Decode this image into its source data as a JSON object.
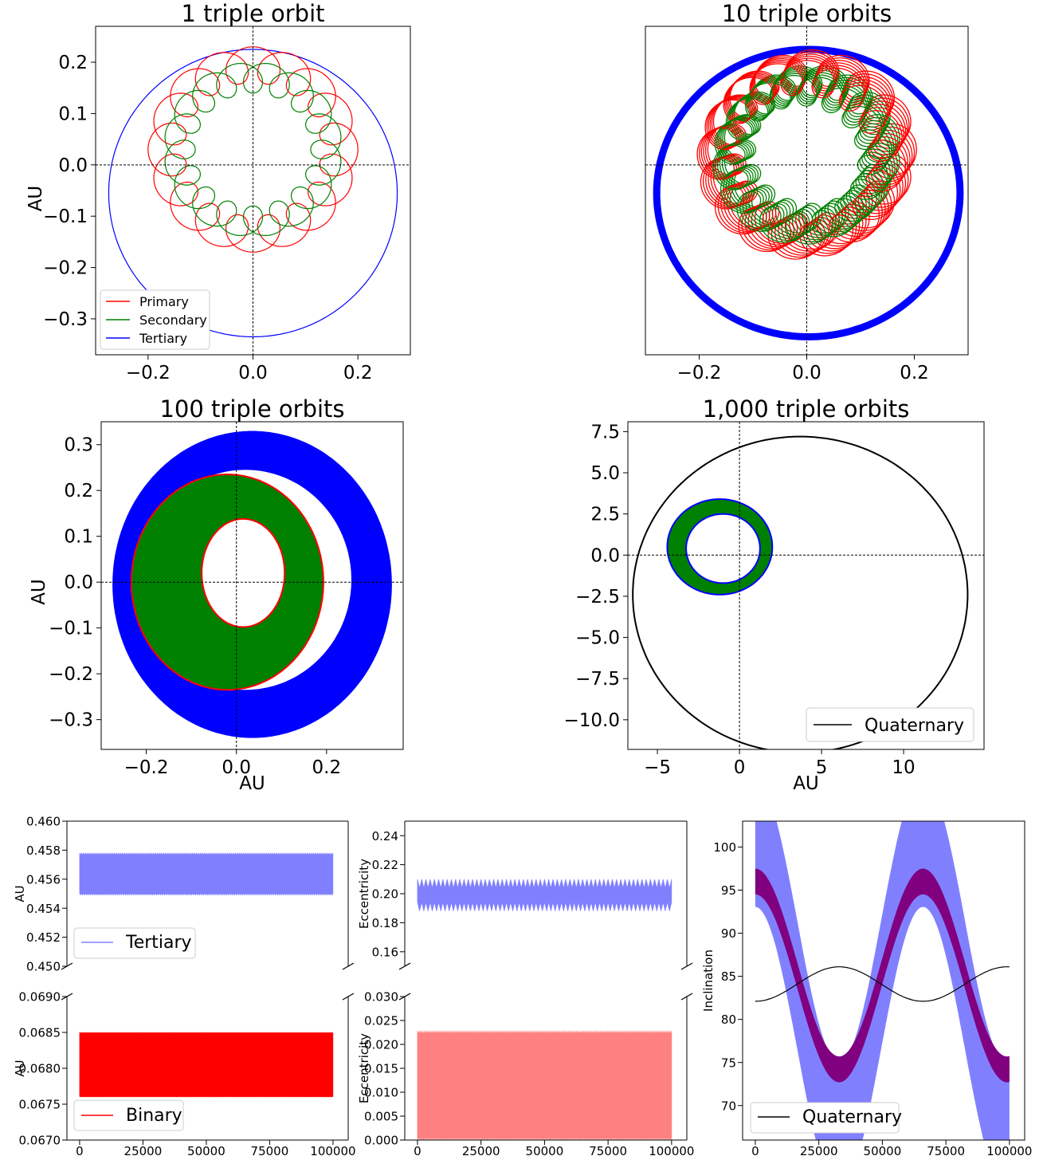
{
  "colors": {
    "primary": "#ff0000",
    "secondary": "#008000",
    "tertiary": "#0000ff",
    "quaternary": "#000000",
    "tertiary_light": "#8080ff",
    "binary_light": "#ff8080",
    "purple": "#800080"
  },
  "chart_data": [
    {
      "id": "p1",
      "type": "line",
      "title": "1 triple orbit",
      "xlabel": "",
      "ylabel": "AU",
      "xlim": [
        -0.3,
        0.3
      ],
      "ylim": [
        -0.37,
        0.27
      ],
      "xticks": [
        "−0.2",
        "0.0",
        "0.2"
      ],
      "yticks": [
        "0.2",
        "0.1",
        "0.0",
        "−0.1",
        "−0.2",
        "−0.3"
      ],
      "legend": {
        "placement": "lower-left",
        "entries": [
          "Primary",
          "Secondary",
          "Tertiary"
        ]
      },
      "series": [
        {
          "name": "Primary",
          "loops": 17,
          "center": [
            0,
            0.03
          ],
          "radius": 0.165,
          "loop_radius": 0.035
        },
        {
          "name": "Secondary",
          "loops": 17,
          "center": [
            0,
            0.03
          ],
          "radius": 0.165,
          "loop_radius": 0.03
        },
        {
          "name": "Tertiary",
          "center": [
            0,
            -0.055
          ],
          "rx": 0.275,
          "ry": 0.28
        }
      ]
    },
    {
      "id": "p2",
      "type": "line",
      "title": "10 triple orbits",
      "xlabel": "",
      "ylabel": "",
      "xlim": [
        -0.3,
        0.3
      ],
      "ylim": [
        -0.37,
        0.27
      ],
      "xticks": [
        "−0.2",
        "0.0",
        "0.2"
      ]
    },
    {
      "id": "p3",
      "type": "line",
      "title": "100 triple orbits",
      "xlabel": "AU",
      "ylabel": "AU",
      "xlim": [
        -0.3,
        0.37
      ],
      "ylim": [
        -0.365,
        0.35
      ],
      "xticks": [
        "−0.2",
        "0.0",
        "0.2"
      ],
      "yticks": [
        "0.3",
        "0.2",
        "0.1",
        "0.0",
        "−0.1",
        "−0.2",
        "−0.3"
      ]
    },
    {
      "id": "p4",
      "type": "line",
      "title": "1,000 triple orbits",
      "xlabel": "AU",
      "ylabel": "",
      "xlim": [
        -6.8,
        14.9
      ],
      "ylim": [
        -11.8,
        8.1
      ],
      "xticks": [
        "−5",
        "0",
        "5",
        "10"
      ],
      "yticks": [
        "7.5",
        "5.0",
        "2.5",
        "0.0",
        "−2.5",
        "−5.0",
        "−7.5",
        "−10.0"
      ],
      "legend": {
        "placement": "lower-right",
        "entries": [
          "Quaternary"
        ]
      }
    },
    {
      "id": "p5",
      "type": "area",
      "ylabel": "AU",
      "xlim": [
        0,
        100000
      ],
      "upper": {
        "ylim": [
          0.45,
          0.46
        ],
        "yticks": [
          "0.460",
          "0.458",
          "0.456",
          "0.454",
          "0.452",
          "0.450"
        ],
        "band": [
          0.4549,
          0.4578
        ],
        "series": "Tertiary"
      },
      "lower": {
        "ylim": [
          0.067,
          0.069
        ],
        "yticks": [
          "0.0690",
          "0.0685",
          "0.0680",
          "0.0675",
          "0.0670"
        ],
        "band": [
          0.0676,
          0.0685
        ],
        "series": "Binary"
      },
      "xticks": [
        "0",
        "25000",
        "50000",
        "75000",
        "100000"
      ],
      "legend": [
        {
          "entries": [
            "Tertiary"
          ]
        },
        {
          "entries": [
            "Binary"
          ]
        }
      ]
    },
    {
      "id": "p6",
      "type": "area",
      "ylabel": "Eccentricity",
      "xlim": [
        0,
        100000
      ],
      "upper": {
        "ylim": [
          0.15,
          0.25
        ],
        "yticks": [
          "0.24",
          "0.22",
          "0.20",
          "0.18",
          "0.16"
        ],
        "band": [
          0.188,
          0.21
        ]
      },
      "lower": {
        "ylim": [
          0,
          0.03
        ],
        "yticks": [
          "0.030",
          "0.025",
          "0.020",
          "0.015",
          "0.010",
          "0.005",
          "0.000"
        ],
        "band": [
          0,
          0.0228
        ]
      },
      "xticks": [
        "0",
        "25000",
        "50000",
        "75000",
        "100000"
      ]
    },
    {
      "id": "p7",
      "type": "area",
      "ylabel": "Inclination",
      "xlim": [
        0,
        100000
      ],
      "ylim": [
        66,
        103
      ],
      "yticks": [
        "100",
        "95",
        "90",
        "85",
        "80",
        "75",
        "70"
      ],
      "xticks": [
        "0",
        "25000",
        "50000",
        "75000",
        "100000"
      ],
      "outer_band": {
        "center": 84,
        "amplitude": 16.5,
        "width": 14.9,
        "period": 66000
      },
      "inner_band": {
        "center": 84,
        "amplitude": 10.3,
        "width": 3,
        "period": 66000
      },
      "quaternary": {
        "center": 84.1,
        "amplitude": 2,
        "period": 66000,
        "phase_peak": 33000
      },
      "legend": {
        "placement": "lower-left",
        "entries": [
          "Quaternary"
        ]
      }
    }
  ]
}
